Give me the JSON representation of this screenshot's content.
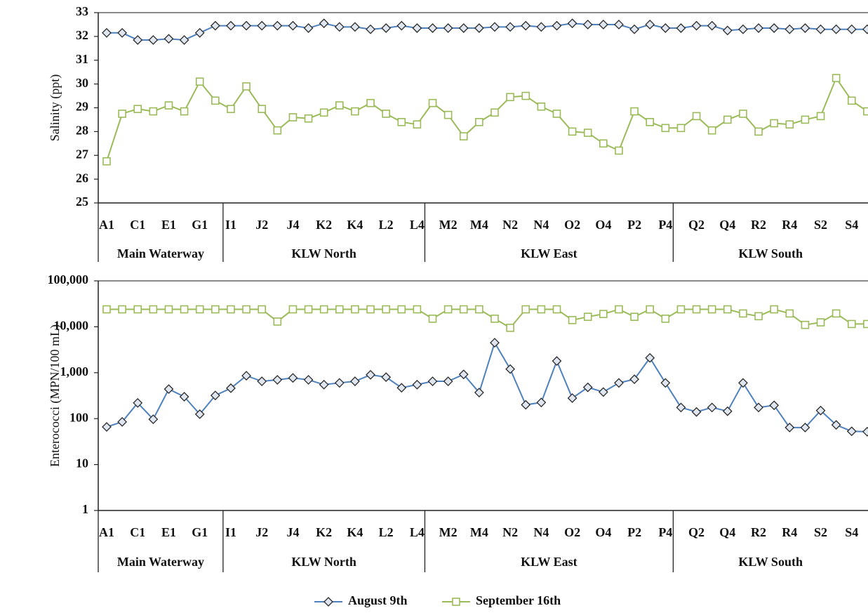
{
  "chart_data": [
    {
      "type": "line",
      "y_label": "Salinity (ppt)",
      "categories": [
        "A1",
        null,
        "C1",
        null,
        "E1",
        null,
        "G1",
        null,
        "I1",
        null,
        "J2",
        null,
        "J4",
        null,
        "K2",
        null,
        "K4",
        null,
        "L2",
        null,
        "L4",
        null,
        "M2",
        null,
        "M4",
        null,
        "N2",
        null,
        "N4",
        null,
        "O2",
        null,
        "O4",
        null,
        "P2",
        null,
        "P4",
        null,
        "Q2",
        null,
        "Q4",
        null,
        "R2",
        null,
        "R4",
        null,
        "S2",
        null,
        "S4",
        null
      ],
      "groups": [
        {
          "name": "Main Waterway",
          "start": 0,
          "end": 7
        },
        {
          "name": "KLW North",
          "start": 8,
          "end": 20
        },
        {
          "name": "KLW East",
          "start": 21,
          "end": 36
        },
        {
          "name": "KLW South",
          "start": 37,
          "end": 49
        }
      ],
      "ylim": [
        25,
        33
      ],
      "yticks": [
        25,
        26,
        27,
        28,
        29,
        30,
        31,
        32,
        33
      ],
      "log_scale": false,
      "series": [
        {
          "name": "August 9th",
          "color": "#4f81bd",
          "marker": "diamond",
          "values": [
            32.15,
            32.15,
            31.85,
            31.85,
            31.9,
            31.85,
            32.15,
            32.45,
            32.45,
            32.45,
            32.45,
            32.45,
            32.45,
            32.35,
            32.55,
            32.4,
            32.4,
            32.3,
            32.35,
            32.45,
            32.35,
            32.35,
            32.35,
            32.35,
            32.35,
            32.4,
            32.4,
            32.45,
            32.4,
            32.45,
            32.55,
            32.5,
            32.5,
            32.5,
            32.3,
            32.5,
            32.35,
            32.35,
            32.45,
            32.45,
            32.25,
            32.3,
            32.35,
            32.35,
            32.3,
            32.35,
            32.3,
            32.3,
            32.3,
            32.3
          ]
        },
        {
          "name": "September 16th",
          "color": "#9bbb59",
          "marker": "square",
          "values": [
            26.75,
            28.75,
            28.95,
            28.85,
            29.1,
            28.85,
            30.1,
            29.3,
            28.95,
            29.9,
            28.95,
            28.05,
            28.6,
            28.55,
            28.8,
            29.1,
            28.85,
            29.2,
            28.75,
            28.4,
            28.3,
            29.2,
            28.7,
            27.8,
            28.4,
            28.8,
            29.45,
            29.5,
            29.05,
            28.75,
            28.0,
            27.95,
            27.5,
            27.2,
            28.85,
            28.4,
            28.15,
            28.15,
            28.65,
            28.05,
            28.5,
            28.75,
            28.0,
            28.35,
            28.3,
            28.5,
            28.65,
            30.25,
            29.3,
            28.85
          ]
        }
      ]
    },
    {
      "type": "line",
      "y_label": "Enterococci (MPN/100 mL)",
      "categories": [
        "A1",
        null,
        "C1",
        null,
        "E1",
        null,
        "G1",
        null,
        "I1",
        null,
        "J2",
        null,
        "J4",
        null,
        "K2",
        null,
        "K4",
        null,
        "L2",
        null,
        "L4",
        null,
        "M2",
        null,
        "M4",
        null,
        "N2",
        null,
        "N4",
        null,
        "O2",
        null,
        "O4",
        null,
        "P2",
        null,
        "P4",
        null,
        "Q2",
        null,
        "Q4",
        null,
        "R2",
        null,
        "R4",
        null,
        "S2",
        null,
        "S4",
        null
      ],
      "groups": [
        {
          "name": "Main Waterway",
          "start": 0,
          "end": 7
        },
        {
          "name": "KLW North",
          "start": 8,
          "end": 20
        },
        {
          "name": "KLW East",
          "start": 21,
          "end": 36
        },
        {
          "name": "KLW South",
          "start": 37,
          "end": 49
        }
      ],
      "ylim": [
        1,
        100000
      ],
      "yticks": [
        1,
        10,
        100,
        {
          "value": 1000,
          "label": "1,000"
        },
        {
          "value": 10000,
          "label": "10,000"
        },
        {
          "value": 100000,
          "label": "100,000"
        }
      ],
      "log_scale": true,
      "series": [
        {
          "name": "August 9th",
          "color": "#4f81bd",
          "marker": "diamond",
          "values": [
            66,
            85,
            220,
            97,
            440,
            300,
            125,
            320,
            460,
            860,
            650,
            700,
            770,
            700,
            550,
            600,
            650,
            900,
            800,
            470,
            550,
            650,
            650,
            920,
            370,
            4500,
            1200,
            200,
            225,
            1800,
            280,
            480,
            380,
            600,
            720,
            2100,
            600,
            175,
            140,
            175,
            145,
            600,
            175,
            195,
            64,
            64,
            150,
            73,
            53,
            52
          ]
        },
        {
          "name": "September 16th",
          "color": "#9bbb59",
          "marker": "square",
          "values": [
            24000,
            24000,
            24000,
            24000,
            24000,
            24000,
            24000,
            24000,
            24000,
            24000,
            24000,
            13000,
            24000,
            24000,
            24000,
            24000,
            24000,
            24000,
            24000,
            24000,
            24000,
            15000,
            24000,
            24000,
            24000,
            15000,
            9500,
            24000,
            24000,
            24000,
            14000,
            16500,
            19000,
            24000,
            16500,
            24000,
            15000,
            24000,
            24000,
            24000,
            24000,
            19500,
            17000,
            24000,
            19500,
            11000,
            12500,
            19500,
            11500,
            11500
          ]
        }
      ]
    }
  ]
}
